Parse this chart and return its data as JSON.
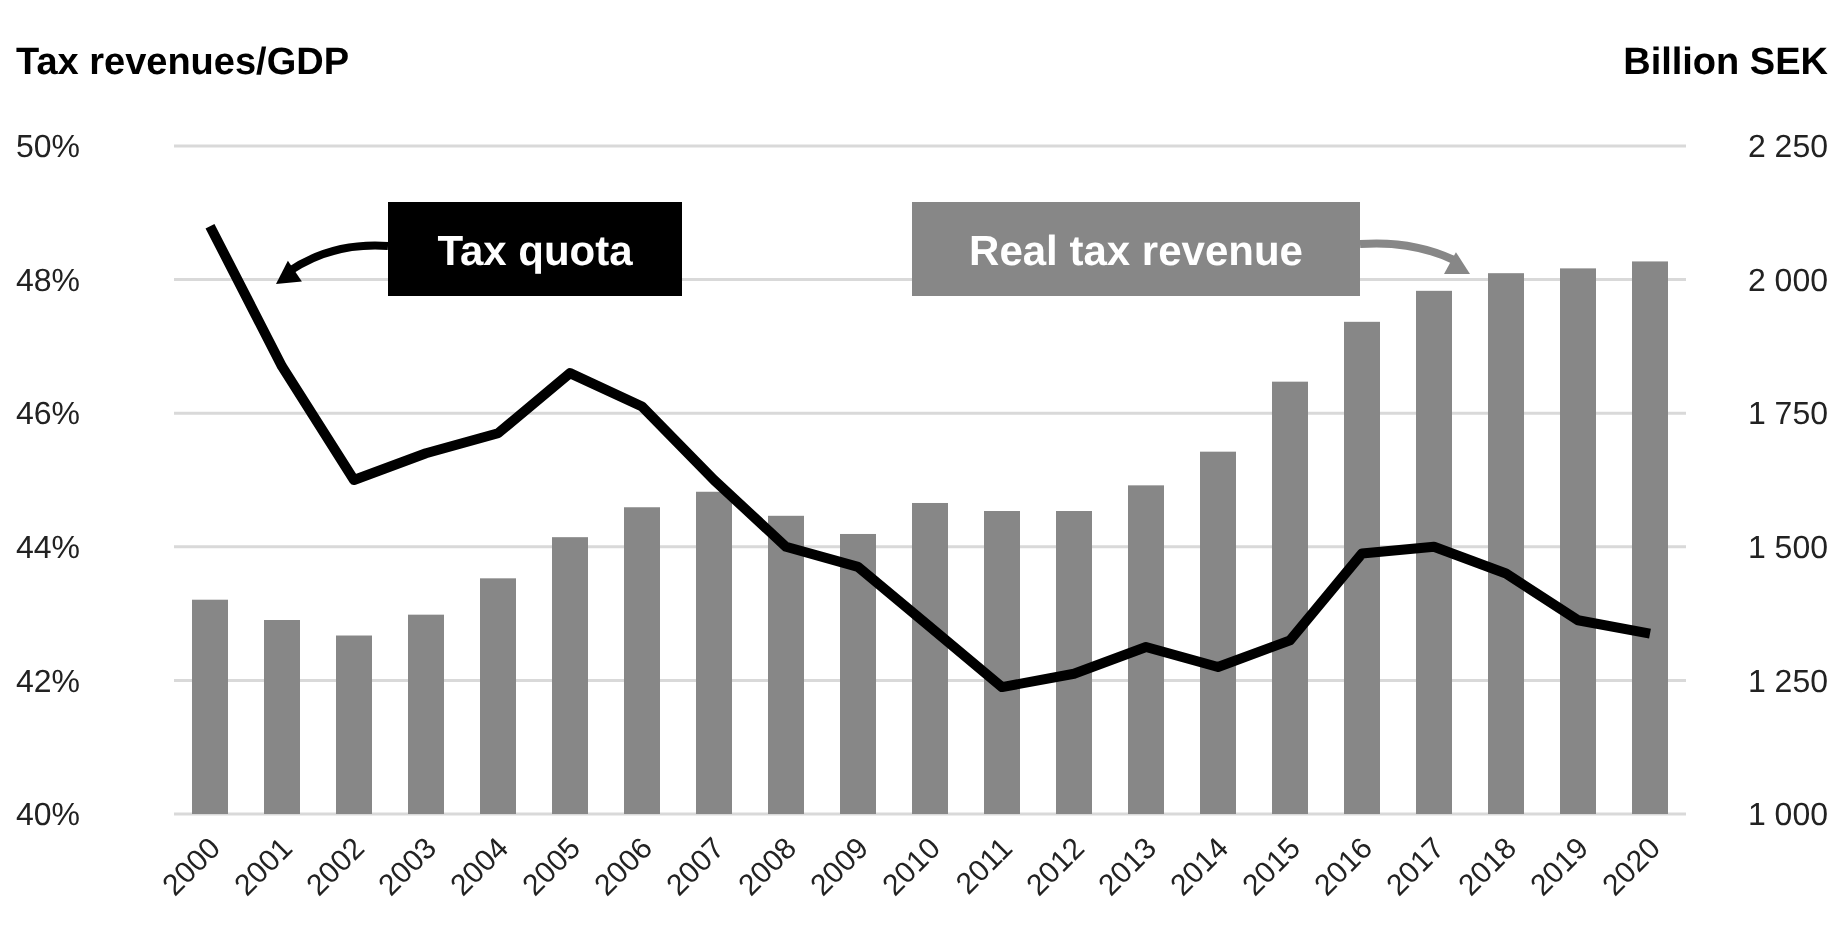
{
  "chart_data": {
    "type": "bar",
    "ylabel": "Tax revenues/GDP",
    "y2label": "Billion SEK",
    "categories": [
      "2000",
      "2001",
      "2002",
      "2003",
      "2004",
      "2005",
      "2006",
      "2007",
      "2008",
      "2009",
      "2010",
      "2011",
      "2012",
      "2013",
      "2014",
      "2015",
      "2016",
      "2017",
      "2018",
      "2019",
      "2020"
    ],
    "series": [
      {
        "name": "Real tax revenue",
        "axis": "y2",
        "color": "#878787",
        "values": [
          1401,
          1363,
          1334,
          1373,
          1441,
          1518,
          1574,
          1603,
          1558,
          1524,
          1582,
          1567,
          1567,
          1615,
          1678,
          1809,
          1921,
          1979,
          2012,
          2021,
          2034
        ]
      },
      {
        "name": "Tax quota",
        "type": "line",
        "axis": "y",
        "color": "#000000",
        "values": [
          48.8,
          46.7,
          45.0,
          45.4,
          45.7,
          46.6,
          46.1,
          45.0,
          44.0,
          43.7,
          42.8,
          41.9,
          42.1,
          42.5,
          42.2,
          42.6,
          43.9,
          44.0,
          43.6,
          42.9,
          42.7
        ]
      }
    ],
    "ylim": [
      40,
      50
    ],
    "yticks": [
      {
        "value": 40,
        "label": "40%"
      },
      {
        "value": 42,
        "label": "42%"
      },
      {
        "value": 44,
        "label": "44%"
      },
      {
        "value": 46,
        "label": "46%"
      },
      {
        "value": 48,
        "label": "48%"
      },
      {
        "value": 50,
        "label": "50%"
      }
    ],
    "y2lim": [
      1000,
      2250
    ],
    "y2ticks": [
      {
        "value": 1000,
        "label": "1 000"
      },
      {
        "value": 1250,
        "label": "1 250"
      },
      {
        "value": 1500,
        "label": "1 500"
      },
      {
        "value": 1750,
        "label": "1 750"
      },
      {
        "value": 2000,
        "label": "2 000"
      },
      {
        "value": 2250,
        "label": "2 250"
      }
    ],
    "grid": "y",
    "legend": "top"
  }
}
